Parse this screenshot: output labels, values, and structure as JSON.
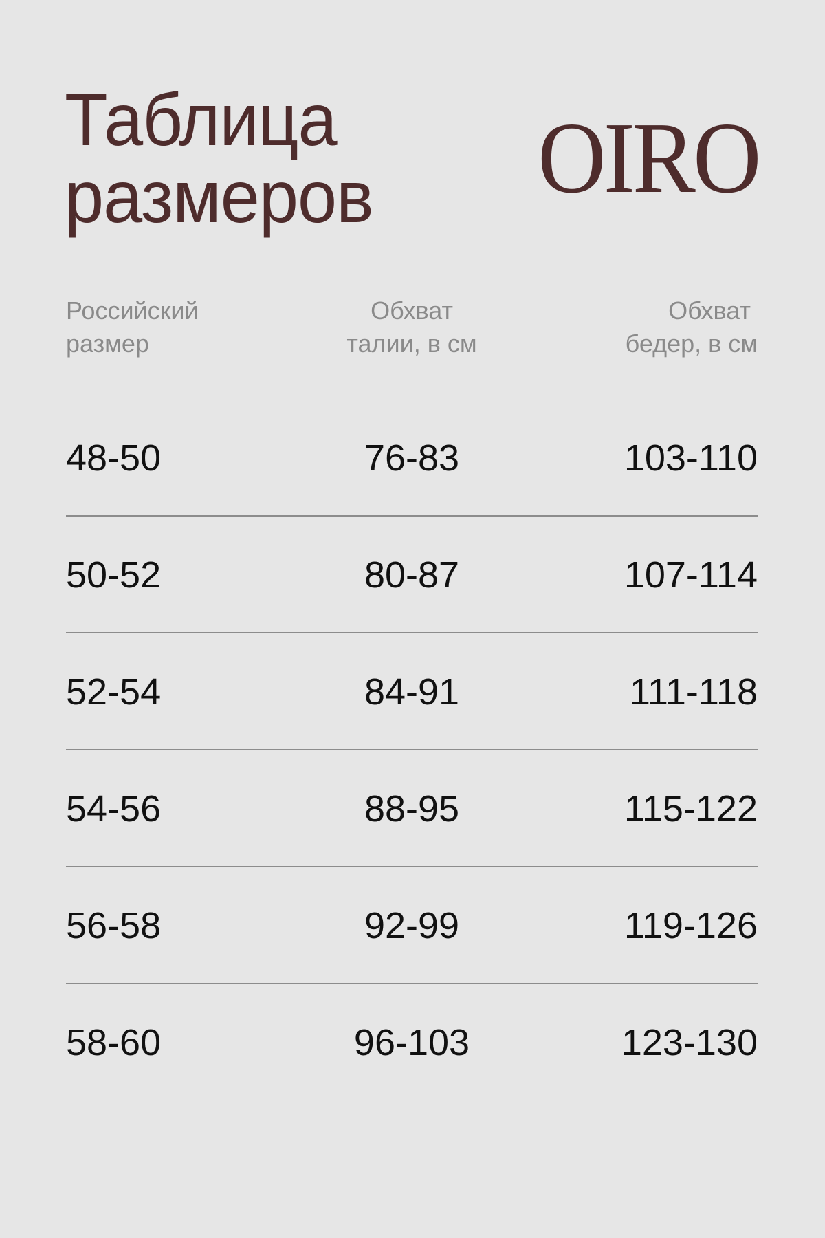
{
  "title": {
    "line1": "Таблица",
    "line2": "размеров"
  },
  "logo": "OIRO",
  "colors": {
    "title": "#4e2c2c",
    "header": "#8a8a8a",
    "text": "#111111",
    "background": "#e6e6e6",
    "divider": "#8c8c8c"
  },
  "headers": [
    {
      "line1": "Российский",
      "line2": "размер"
    },
    {
      "line1": "Обхват",
      "line2": "талии, в см"
    },
    {
      "line1": "Обхват",
      "line2": "бедер, в см"
    }
  ],
  "rows": [
    [
      "48-50",
      "76-83",
      "103-110"
    ],
    [
      "50-52",
      "80-87",
      "107-114"
    ],
    [
      "52-54",
      "84-91",
      "111-118"
    ],
    [
      "54-56",
      "88-95",
      "115-122"
    ],
    [
      "56-58",
      "92-99",
      "119-126"
    ],
    [
      "58-60",
      "96-103",
      "123-130"
    ]
  ]
}
